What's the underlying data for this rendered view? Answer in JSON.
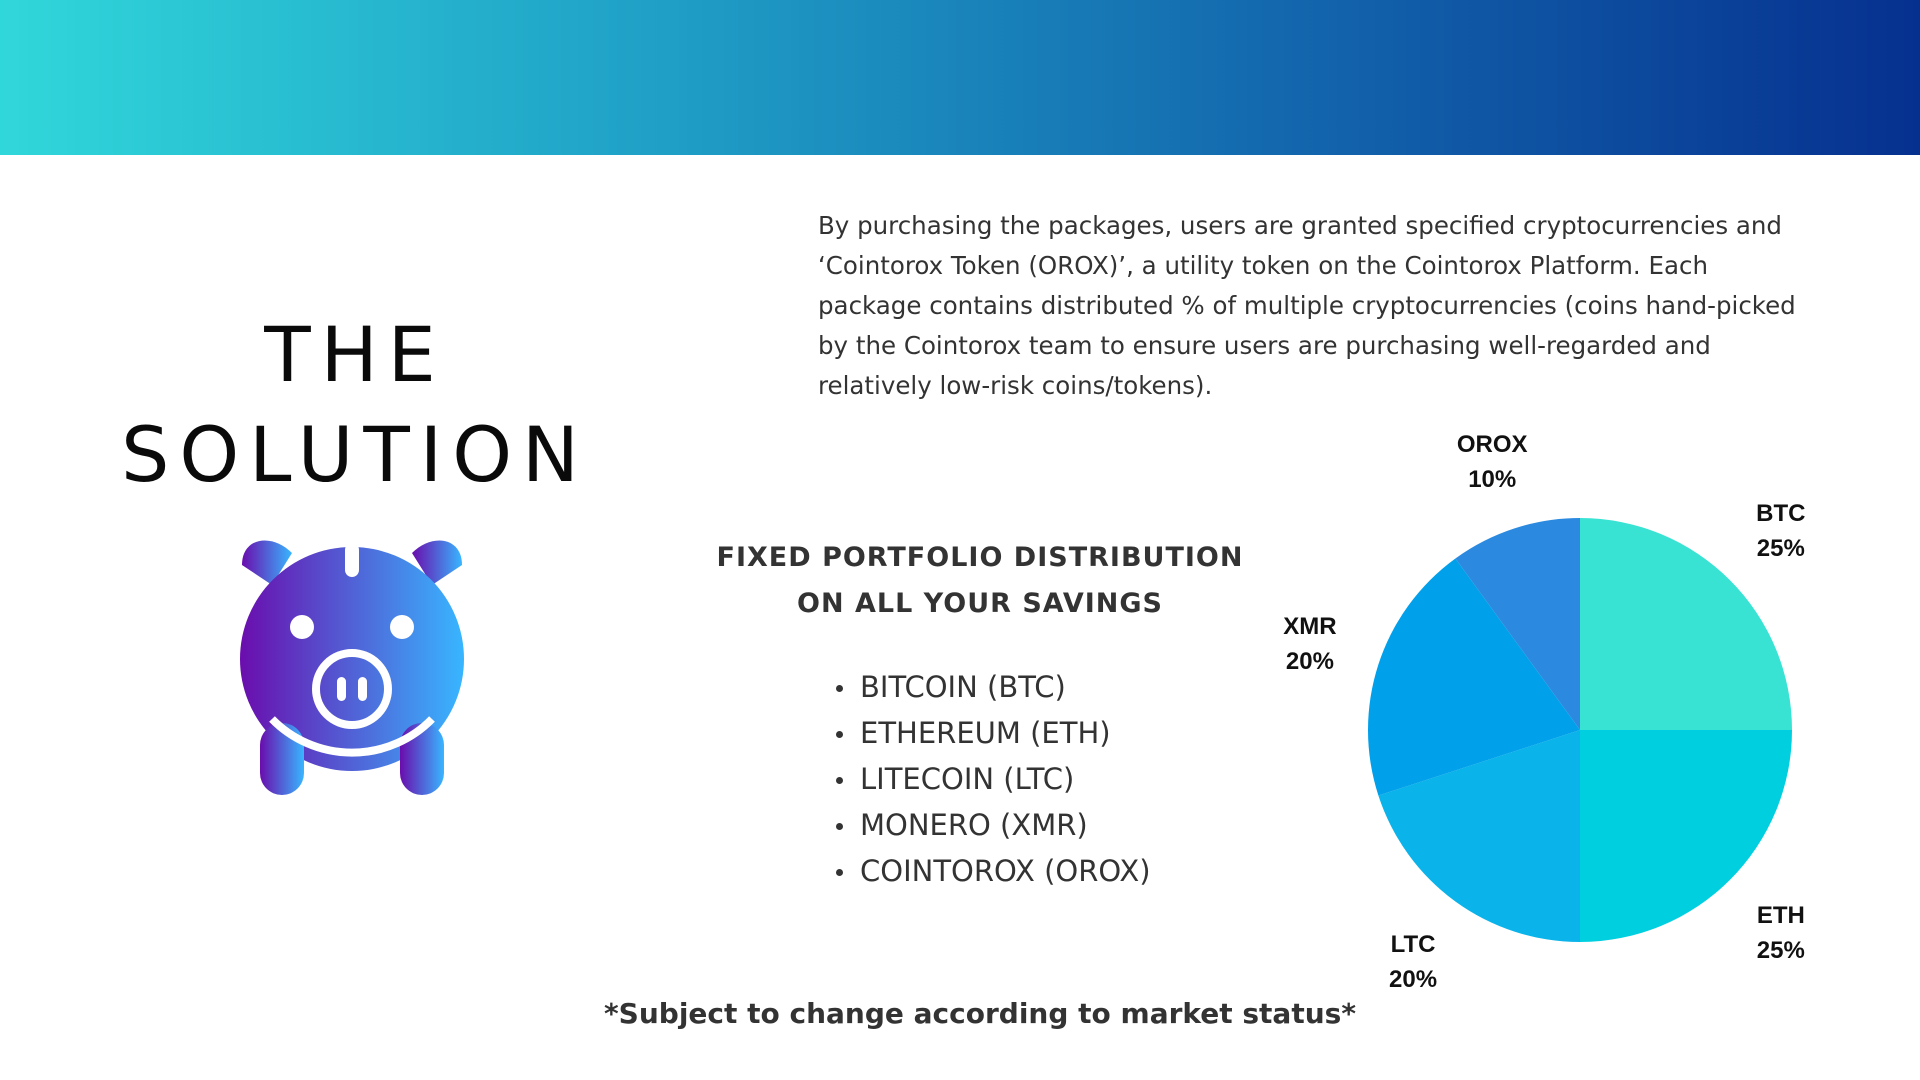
{
  "title": {
    "line1": "THE",
    "line2": "SOLUTION"
  },
  "intro": {
    "text": "By purchasing the packages, users are granted specified cryptocurrencies and ‘Cointorox Token (OROX)’, a utility token on the Cointorox Platform. Each package contains distributed % of multiple cryptocurrencies (coins hand-picked by the Cointorox team to ensure users are purchasing well-regarded and relatively low-risk coins/tokens)."
  },
  "distribution": {
    "heading_line1": "FIXED PORTFOLIO DISTRIBUTION",
    "heading_line2": "ON ALL YOUR SAVINGS",
    "items": [
      "BITCOIN (BTC)",
      "ETHEREUM (ETH)",
      "LITECOIN (LTC)",
      "MONERO (XMR)",
      "COINTOROX (OROX)"
    ]
  },
  "icon": {
    "name": "piggy-bank-icon",
    "gradient": [
      "#6a0dad",
      "#38b6ff"
    ]
  },
  "chart_data": {
    "type": "pie",
    "categories": [
      "BTC",
      "ETH",
      "LTC",
      "XMR",
      "OROX"
    ],
    "values": [
      25,
      25,
      20,
      20,
      10
    ],
    "value_labels": [
      "25%",
      "25%",
      "20%",
      "20%",
      "10%"
    ],
    "colors": [
      "#38e3d3",
      "#00cfe0",
      "#0ab4ea",
      "#00a0ea",
      "#2b8ae0"
    ],
    "start": "12 o'clock, clockwise",
    "legend": "none"
  },
  "footnote": "*Subject to change according to market status*"
}
